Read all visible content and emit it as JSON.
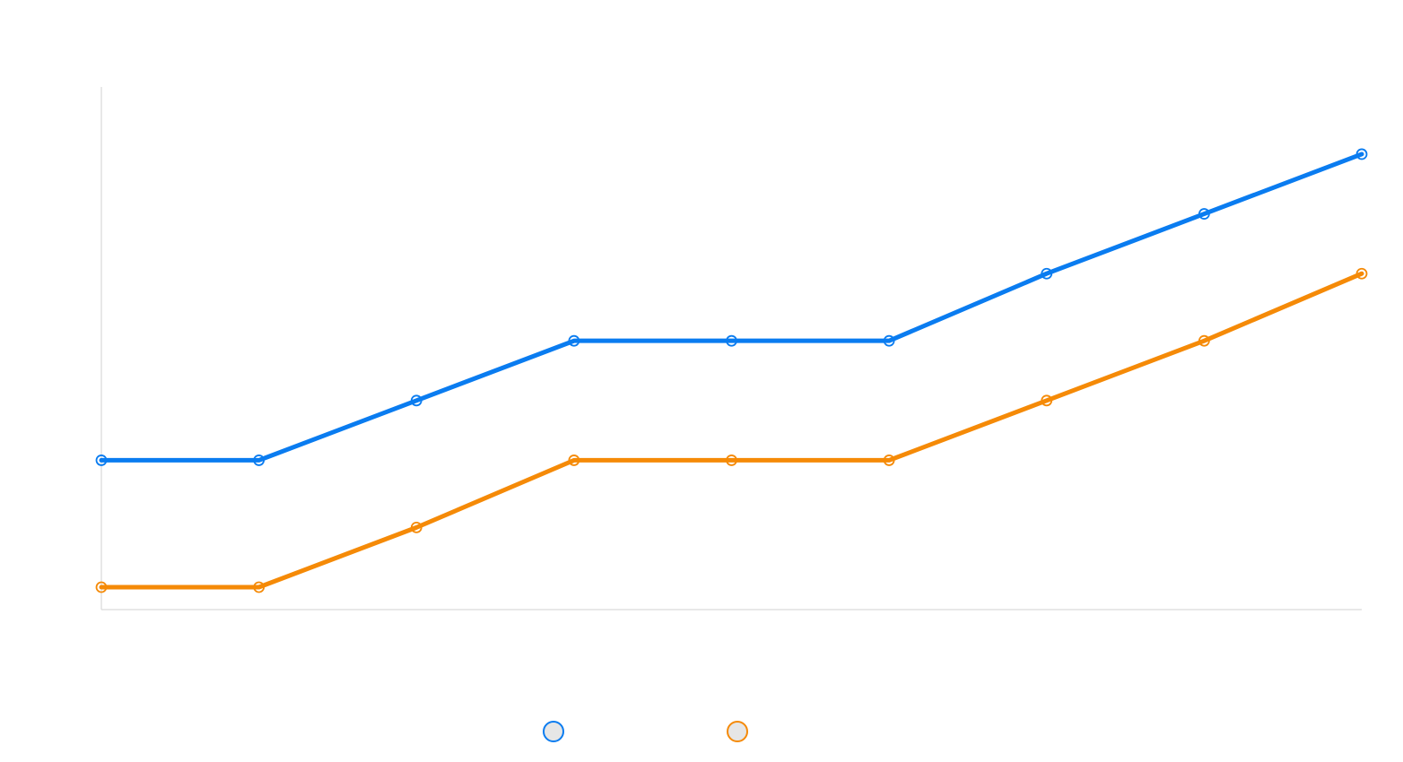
{
  "chart_data": {
    "type": "line",
    "x": [
      1,
      2,
      3,
      4,
      5,
      6,
      7,
      8,
      9
    ],
    "xlim": [
      1,
      9
    ],
    "ylim": [
      0,
      105
    ],
    "grid": false,
    "legend_position": "bottom-center",
    "series": [
      {
        "color": "#0a7cf0",
        "values": [
          30,
          30,
          42,
          54,
          54,
          54,
          67.5,
          79.5,
          91.5
        ]
      },
      {
        "color": "#f58a07",
        "values": [
          4.5,
          4.5,
          16.5,
          30,
          30,
          30,
          42,
          54,
          67.5
        ]
      }
    ]
  },
  "legend": {
    "items": [
      {
        "color": "#0a7cf0",
        "fill": "#e6e6e6"
      },
      {
        "color": "#f58a07",
        "fill": "#e6e6e6"
      }
    ]
  },
  "axis_color": "#d9d9d9"
}
